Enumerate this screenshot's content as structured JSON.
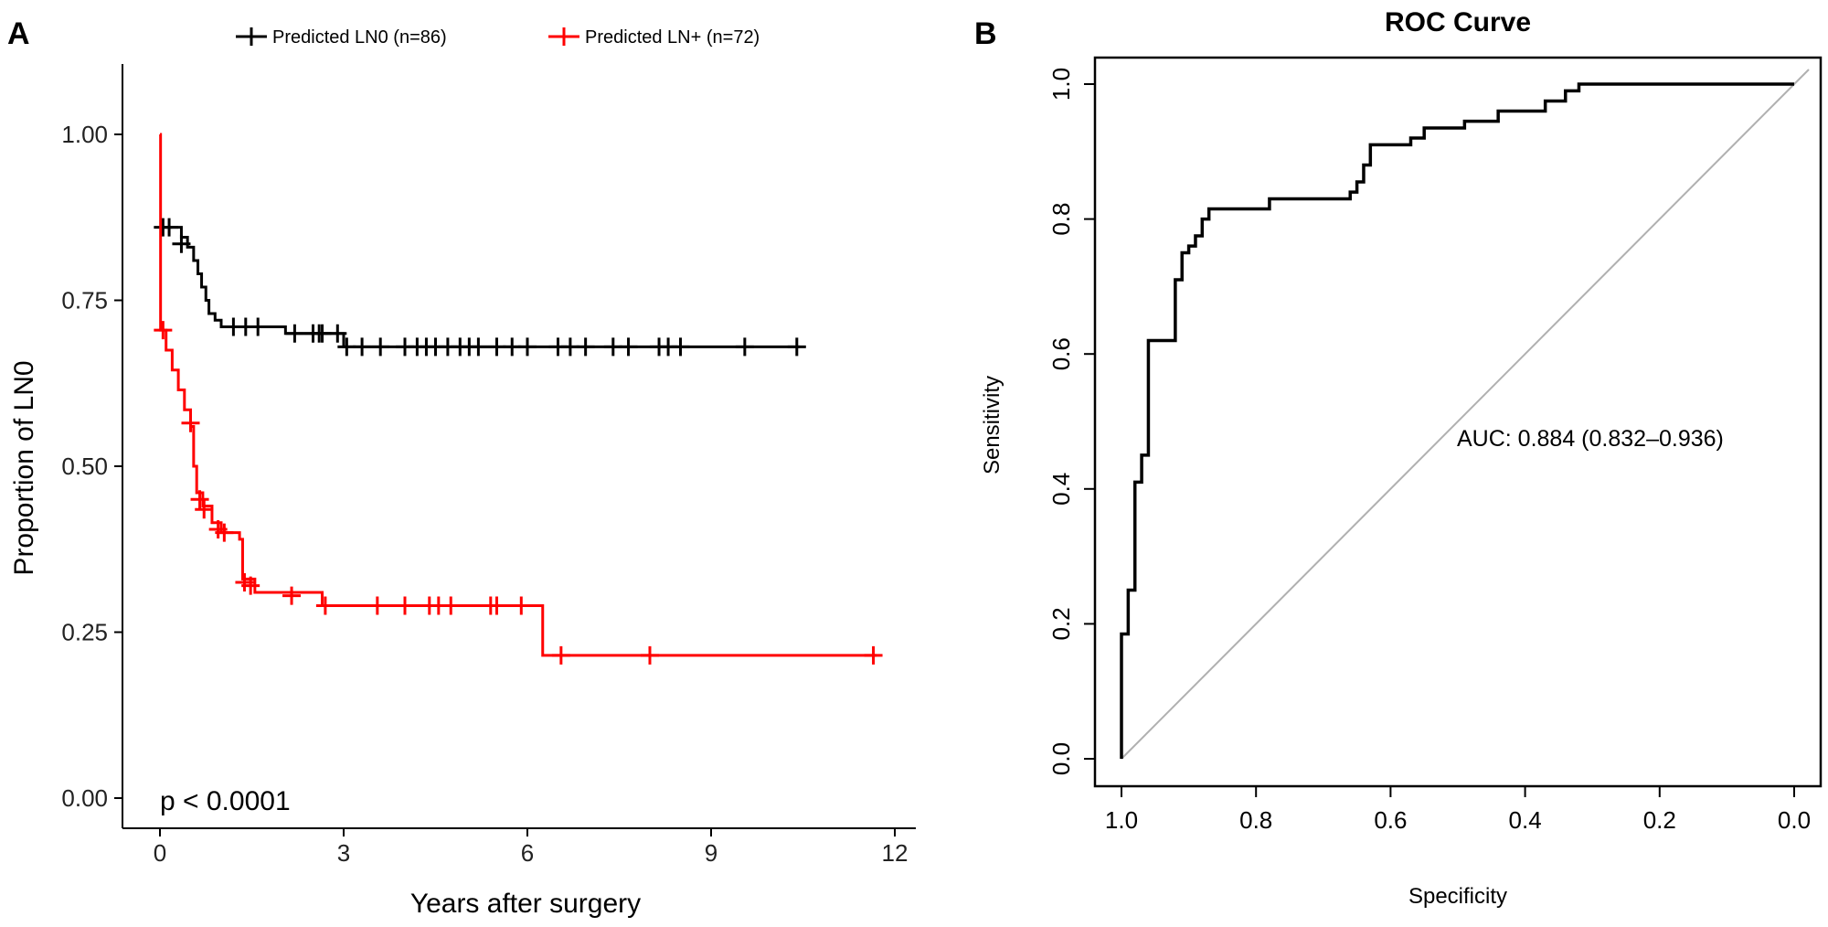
{
  "chart_data": [
    {
      "panel_label": "A",
      "type": "line",
      "subtype": "kaplan-meier step",
      "xlabel": "Years after surgery",
      "ylabel": "Proportion of LN0",
      "xlim": [
        0,
        12
      ],
      "ylim": [
        0,
        1
      ],
      "x_ticks": [
        "0",
        "3",
        "6",
        "9",
        "12"
      ],
      "y_ticks": [
        "0.00",
        "0.25",
        "0.50",
        "0.75",
        "1.00"
      ],
      "legend_position": "top",
      "annotation": "p < 0.0001",
      "series": [
        {
          "name": "Predicted LN0 (n=86)",
          "color": "#000000",
          "steps": [
            [
              0,
              0.86
            ],
            [
              0.3,
              0.86
            ],
            [
              0.35,
              0.845
            ],
            [
              0.45,
              0.83
            ],
            [
              0.55,
              0.81
            ],
            [
              0.62,
              0.79
            ],
            [
              0.68,
              0.77
            ],
            [
              0.75,
              0.75
            ],
            [
              0.8,
              0.73
            ],
            [
              0.9,
              0.72
            ],
            [
              1.0,
              0.71
            ],
            [
              2.05,
              0.7
            ],
            [
              3.0,
              0.68
            ],
            [
              10.45,
              0.68
            ]
          ],
          "censored": [
            [
              0.05,
              0.86
            ],
            [
              0.15,
              0.86
            ],
            [
              0.35,
              0.835
            ],
            [
              1.2,
              0.71
            ],
            [
              1.4,
              0.71
            ],
            [
              1.6,
              0.71
            ],
            [
              2.2,
              0.7
            ],
            [
              2.5,
              0.7
            ],
            [
              2.6,
              0.7
            ],
            [
              2.65,
              0.7
            ],
            [
              2.9,
              0.7
            ],
            [
              3.05,
              0.68
            ],
            [
              3.3,
              0.68
            ],
            [
              3.6,
              0.68
            ],
            [
              4.0,
              0.68
            ],
            [
              4.2,
              0.68
            ],
            [
              4.35,
              0.68
            ],
            [
              4.5,
              0.68
            ],
            [
              4.7,
              0.68
            ],
            [
              4.9,
              0.68
            ],
            [
              5.05,
              0.68
            ],
            [
              5.2,
              0.68
            ],
            [
              5.5,
              0.68
            ],
            [
              5.75,
              0.68
            ],
            [
              6.0,
              0.68
            ],
            [
              6.5,
              0.68
            ],
            [
              6.7,
              0.68
            ],
            [
              6.95,
              0.68
            ],
            [
              7.4,
              0.68
            ],
            [
              7.65,
              0.68
            ],
            [
              8.15,
              0.68
            ],
            [
              8.3,
              0.68
            ],
            [
              8.5,
              0.68
            ],
            [
              9.55,
              0.68
            ],
            [
              10.4,
              0.68
            ]
          ]
        },
        {
          "name": "Predicted LN+ (n=72)",
          "color": "#ff0000",
          "steps": [
            [
              0,
              1.0
            ],
            [
              0.01,
              0.705
            ],
            [
              0.1,
              0.675
            ],
            [
              0.2,
              0.645
            ],
            [
              0.3,
              0.615
            ],
            [
              0.4,
              0.585
            ],
            [
              0.5,
              0.56
            ],
            [
              0.55,
              0.5
            ],
            [
              0.6,
              0.46
            ],
            [
              0.7,
              0.44
            ],
            [
              0.85,
              0.415
            ],
            [
              1.0,
              0.4
            ],
            [
              1.3,
              0.39
            ],
            [
              1.35,
              0.33
            ],
            [
              1.55,
              0.31
            ],
            [
              2.65,
              0.29
            ],
            [
              6.25,
              0.215
            ],
            [
              11.7,
              0.215
            ]
          ],
          "censored": [
            [
              0.05,
              0.705
            ],
            [
              0.5,
              0.565
            ],
            [
              0.65,
              0.45
            ],
            [
              0.72,
              0.435
            ],
            [
              0.95,
              0.405
            ],
            [
              1.05,
              0.4
            ],
            [
              1.38,
              0.325
            ],
            [
              1.48,
              0.32
            ],
            [
              2.15,
              0.305
            ],
            [
              2.7,
              0.29
            ],
            [
              3.55,
              0.29
            ],
            [
              4.0,
              0.29
            ],
            [
              4.4,
              0.29
            ],
            [
              4.55,
              0.29
            ],
            [
              4.75,
              0.29
            ],
            [
              5.4,
              0.29
            ],
            [
              5.5,
              0.29
            ],
            [
              5.9,
              0.29
            ],
            [
              6.55,
              0.215
            ],
            [
              8.0,
              0.215
            ],
            [
              11.65,
              0.215
            ]
          ]
        }
      ]
    },
    {
      "panel_label": "B",
      "type": "line",
      "subtype": "roc step",
      "title": "ROC Curve",
      "xlabel": "Specificity",
      "ylabel": "Sensitivity",
      "xlim": [
        1.0,
        0.0
      ],
      "ylim": [
        0,
        1
      ],
      "x_ticks": [
        "1.0",
        "0.8",
        "0.6",
        "0.4",
        "0.2",
        "0.0"
      ],
      "y_ticks": [
        "0.0",
        "0.2",
        "0.4",
        "0.6",
        "0.8",
        "1.0"
      ],
      "annotation": "AUC: 0.884 (0.832–0.936)",
      "reference_line_color": "#b0b0b0",
      "series": [
        {
          "color": "#000000",
          "points": [
            [
              1.0,
              0.0
            ],
            [
              1.0,
              0.185
            ],
            [
              0.99,
              0.185
            ],
            [
              0.99,
              0.25
            ],
            [
              0.98,
              0.25
            ],
            [
              0.98,
              0.41
            ],
            [
              0.97,
              0.41
            ],
            [
              0.97,
              0.45
            ],
            [
              0.96,
              0.45
            ],
            [
              0.96,
              0.62
            ],
            [
              0.92,
              0.62
            ],
            [
              0.92,
              0.71
            ],
            [
              0.91,
              0.71
            ],
            [
              0.91,
              0.75
            ],
            [
              0.9,
              0.75
            ],
            [
              0.9,
              0.76
            ],
            [
              0.89,
              0.76
            ],
            [
              0.89,
              0.775
            ],
            [
              0.88,
              0.775
            ],
            [
              0.88,
              0.8
            ],
            [
              0.87,
              0.8
            ],
            [
              0.87,
              0.815
            ],
            [
              0.78,
              0.815
            ],
            [
              0.78,
              0.83
            ],
            [
              0.66,
              0.83
            ],
            [
              0.66,
              0.84
            ],
            [
              0.65,
              0.84
            ],
            [
              0.65,
              0.855
            ],
            [
              0.64,
              0.855
            ],
            [
              0.64,
              0.88
            ],
            [
              0.63,
              0.88
            ],
            [
              0.63,
              0.91
            ],
            [
              0.57,
              0.91
            ],
            [
              0.57,
              0.92
            ],
            [
              0.55,
              0.92
            ],
            [
              0.55,
              0.935
            ],
            [
              0.49,
              0.935
            ],
            [
              0.49,
              0.945
            ],
            [
              0.44,
              0.945
            ],
            [
              0.44,
              0.96
            ],
            [
              0.37,
              0.96
            ],
            [
              0.37,
              0.975
            ],
            [
              0.34,
              0.975
            ],
            [
              0.34,
              0.99
            ],
            [
              0.32,
              0.99
            ],
            [
              0.32,
              1.0
            ],
            [
              0.0,
              1.0
            ]
          ]
        }
      ]
    }
  ]
}
